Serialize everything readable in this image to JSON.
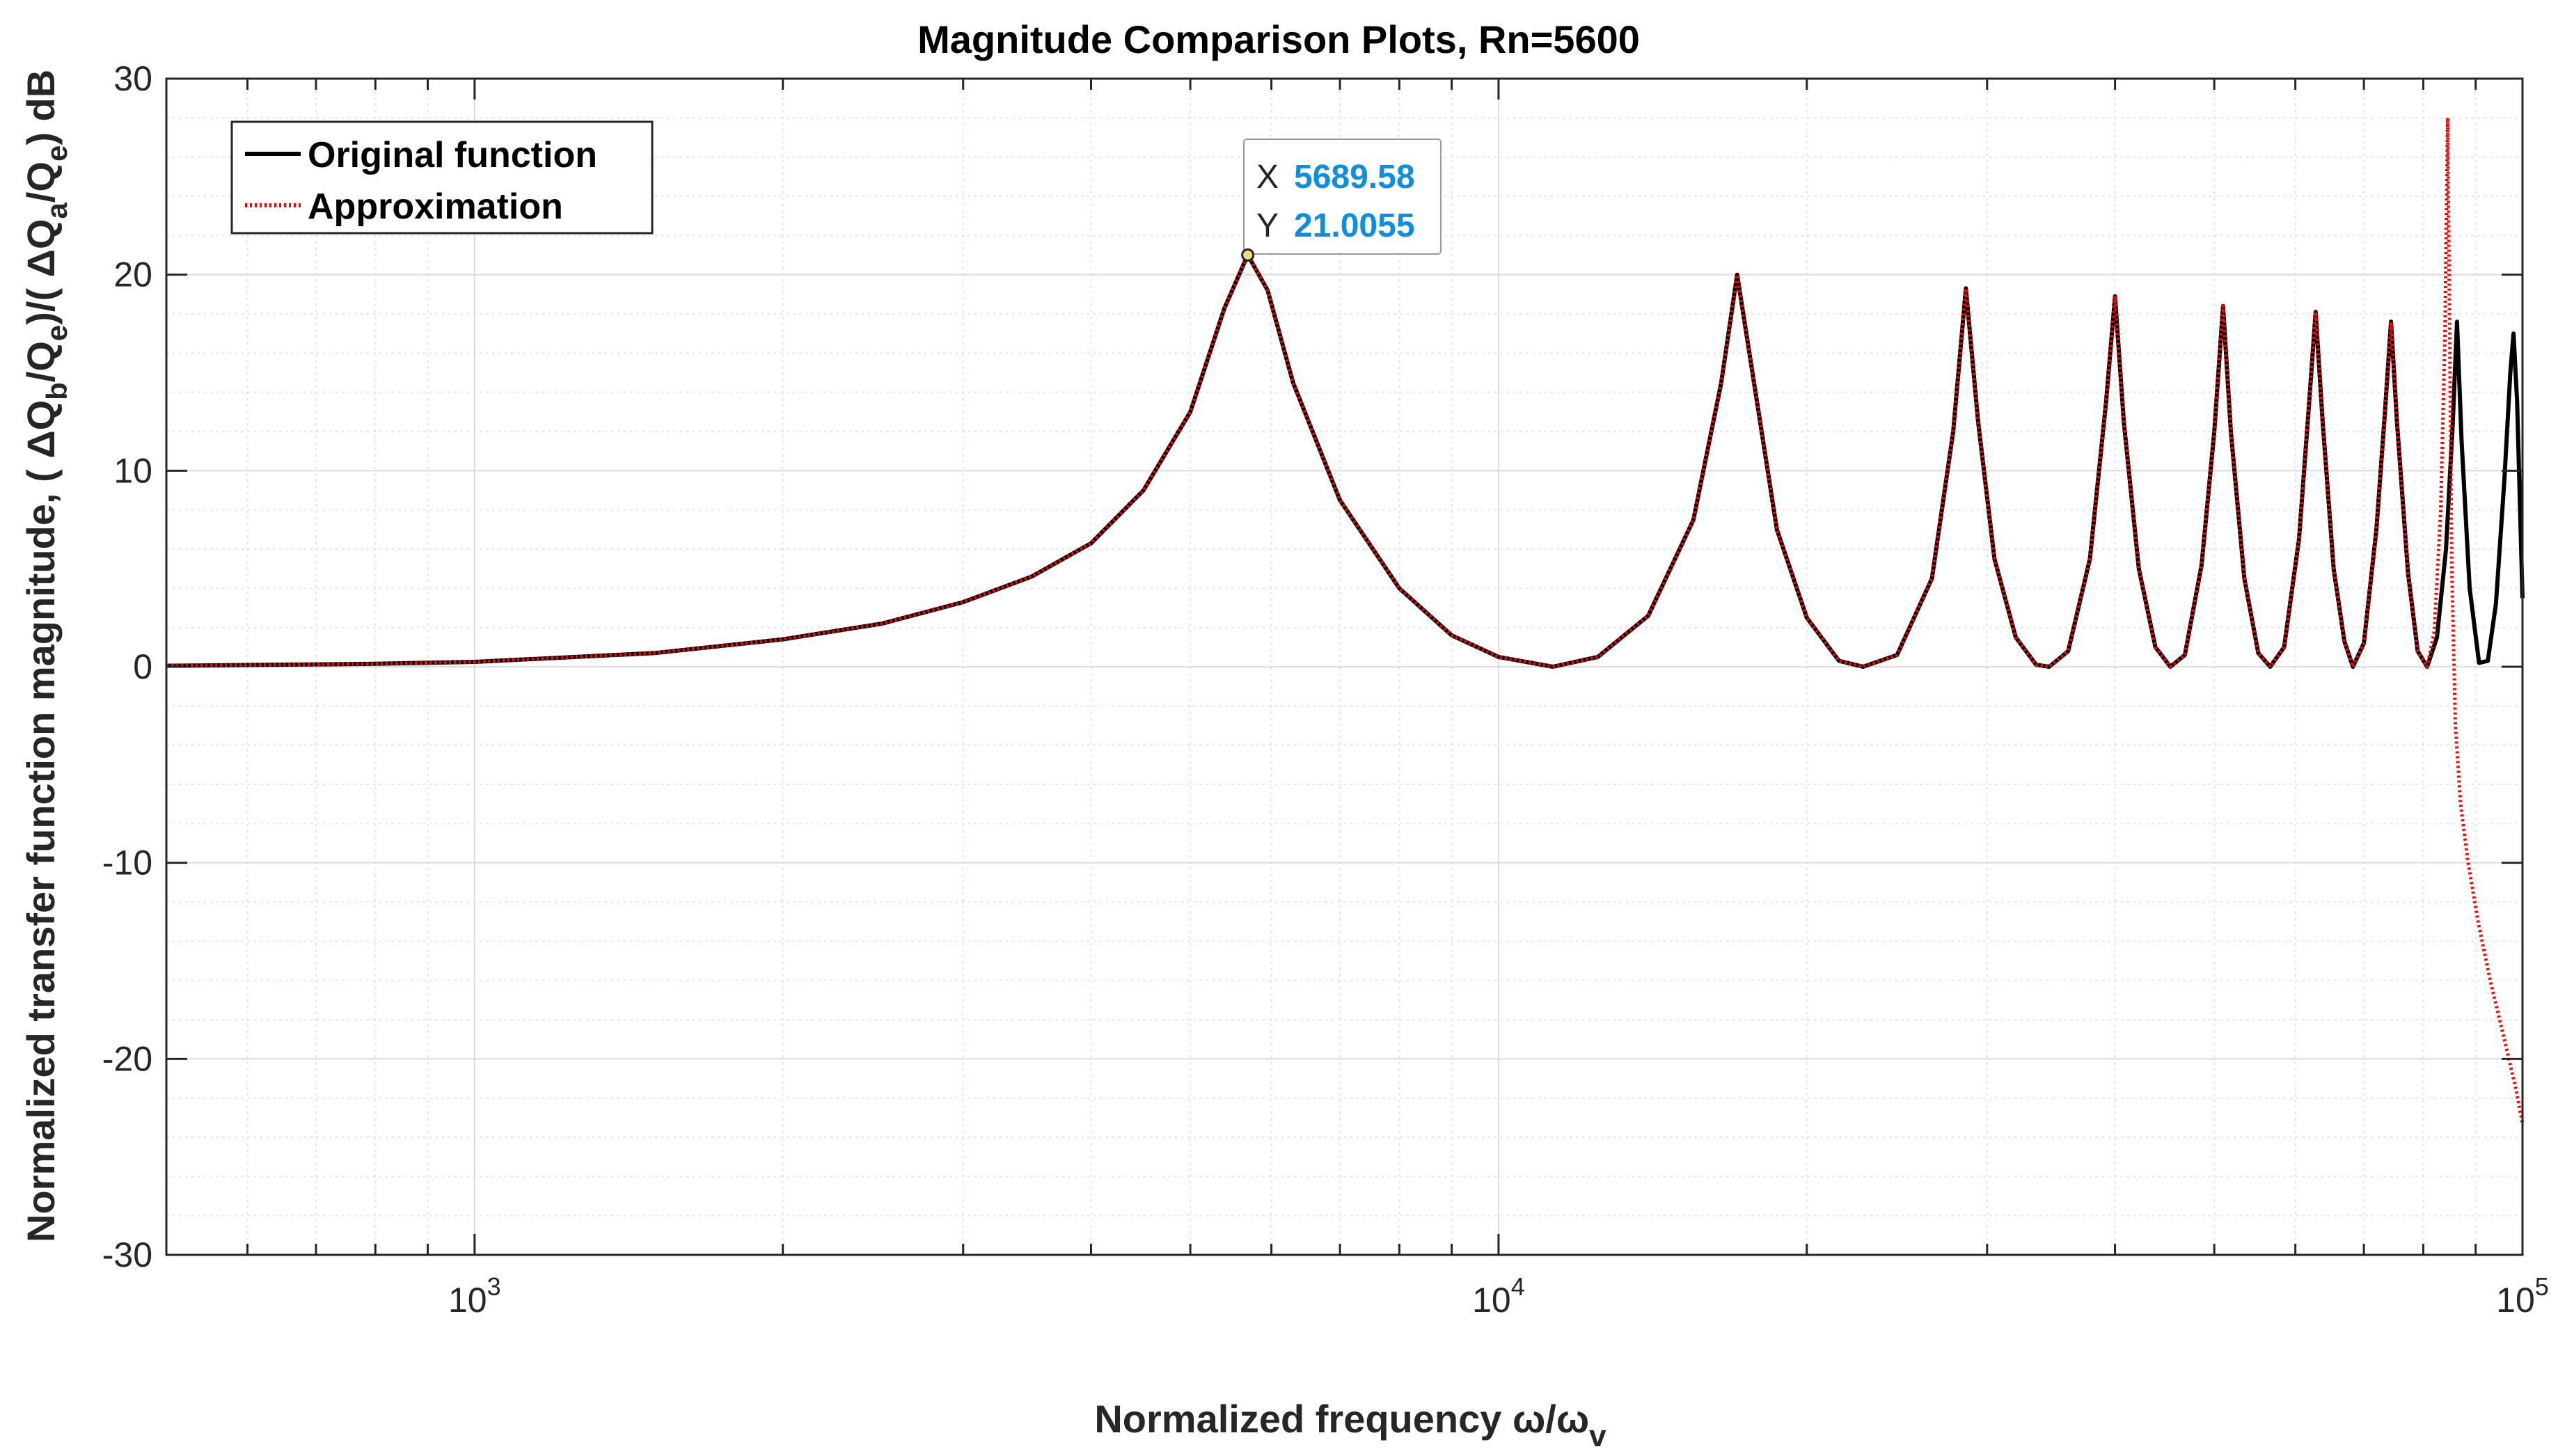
{
  "chart_data": {
    "type": "line",
    "title": "Magnitude Comparison Plots, Rn=5600",
    "xlabel": "Normalized frequency ω/ω",
    "xlabel_sub": "v",
    "ylabel_parts": [
      "Normalized transfer function magnitude,  ( ΔQ",
      "b",
      "/Q",
      "e",
      ")/( ΔQ",
      "a",
      "/Q",
      "e",
      ") dB"
    ],
    "xscale": "log",
    "xlim": [
      500,
      100000
    ],
    "ylim": [
      -30,
      30
    ],
    "yticks": [
      -30,
      -20,
      -10,
      0,
      10,
      20,
      30
    ],
    "ytick_labels": [
      "-30",
      "-20",
      "-10",
      "0",
      "10",
      "20",
      "30"
    ],
    "xticks": [
      {
        "value": 1000,
        "base": "10",
        "exp": "3"
      },
      {
        "value": 10000,
        "base": "10",
        "exp": "4"
      },
      {
        "value": 100000,
        "base": "10",
        "exp": "5"
      }
    ],
    "grid": true,
    "legend_position": "top-left",
    "series": [
      {
        "name": "Original function",
        "color": "#000000",
        "style": "solid",
        "points": [
          [
            500,
            0.05
          ],
          [
            800,
            0.15
          ],
          [
            1000,
            0.25
          ],
          [
            1500,
            0.7
          ],
          [
            2000,
            1.4
          ],
          [
            2500,
            2.2
          ],
          [
            3000,
            3.3
          ],
          [
            3500,
            4.6
          ],
          [
            4000,
            6.3
          ],
          [
            4500,
            9.0
          ],
          [
            5000,
            13.0
          ],
          [
            5400,
            18.3
          ],
          [
            5689.58,
            21.0055
          ],
          [
            5950,
            19.2
          ],
          [
            6300,
            14.5
          ],
          [
            7000,
            8.5
          ],
          [
            8000,
            4.0
          ],
          [
            9000,
            1.6
          ],
          [
            10000,
            0.5
          ],
          [
            11300,
            0.0
          ],
          [
            12500,
            0.5
          ],
          [
            14000,
            2.6
          ],
          [
            15500,
            7.5
          ],
          [
            16500,
            14.5
          ],
          [
            17100,
            20.0
          ],
          [
            17700,
            15.0
          ],
          [
            18700,
            7.0
          ],
          [
            20000,
            2.5
          ],
          [
            21500,
            0.3
          ],
          [
            22700,
            0.0
          ],
          [
            24500,
            0.6
          ],
          [
            26500,
            4.5
          ],
          [
            27800,
            12.0
          ],
          [
            28600,
            19.3
          ],
          [
            29400,
            12.5
          ],
          [
            30500,
            5.5
          ],
          [
            32000,
            1.5
          ],
          [
            33500,
            0.1
          ],
          [
            34500,
            0.0
          ],
          [
            36000,
            0.8
          ],
          [
            37800,
            5.5
          ],
          [
            39200,
            13.5
          ],
          [
            40000,
            18.9
          ],
          [
            40800,
            12.5
          ],
          [
            42200,
            5.0
          ],
          [
            43800,
            1.0
          ],
          [
            45300,
            0.0
          ],
          [
            46800,
            0.6
          ],
          [
            48600,
            5.2
          ],
          [
            50000,
            12.0
          ],
          [
            51000,
            18.4
          ],
          [
            51900,
            12.0
          ],
          [
            53500,
            4.5
          ],
          [
            55200,
            0.7
          ],
          [
            56700,
            0.0
          ],
          [
            58500,
            1.0
          ],
          [
            60500,
            6.5
          ],
          [
            61800,
            13.0
          ],
          [
            62800,
            18.1
          ],
          [
            63800,
            12.5
          ],
          [
            65400,
            5.0
          ],
          [
            67000,
            1.3
          ],
          [
            68300,
            0.0
          ],
          [
            70000,
            1.2
          ],
          [
            72000,
            7.0
          ],
          [
            73400,
            13.0
          ],
          [
            74400,
            17.6
          ],
          [
            75400,
            12.5
          ],
          [
            77300,
            4.8
          ],
          [
            79000,
            0.8
          ],
          [
            80700,
            0.0
          ],
          [
            82500,
            1.5
          ],
          [
            84200,
            6.0
          ],
          [
            85500,
            12.5
          ],
          [
            86300,
            17.6
          ],
          [
            87200,
            11.5
          ],
          [
            88800,
            4.0
          ],
          [
            90700,
            0.2
          ],
          [
            92500,
            0.3
          ],
          [
            94200,
            3.2
          ],
          [
            96000,
            9.5
          ],
          [
            97300,
            15.0
          ],
          [
            98000,
            17.0
          ],
          [
            98800,
            13.5
          ],
          [
            100000,
            3.5
          ]
        ]
      },
      {
        "name": "Approximation",
        "color": "#ff0000",
        "style": "dotted",
        "points": [
          [
            500,
            0.05
          ],
          [
            800,
            0.15
          ],
          [
            1000,
            0.25
          ],
          [
            1500,
            0.7
          ],
          [
            2000,
            1.4
          ],
          [
            2500,
            2.2
          ],
          [
            3000,
            3.3
          ],
          [
            3500,
            4.6
          ],
          [
            4000,
            6.3
          ],
          [
            4500,
            9.0
          ],
          [
            5000,
            13.0
          ],
          [
            5400,
            18.3
          ],
          [
            5689.58,
            21.0055
          ],
          [
            5950,
            19.2
          ],
          [
            6300,
            14.5
          ],
          [
            7000,
            8.5
          ],
          [
            8000,
            4.0
          ],
          [
            9000,
            1.6
          ],
          [
            10000,
            0.5
          ],
          [
            11300,
            0.0
          ],
          [
            12500,
            0.5
          ],
          [
            14000,
            2.6
          ],
          [
            15500,
            7.5
          ],
          [
            16500,
            14.5
          ],
          [
            17100,
            20.0
          ],
          [
            17700,
            15.0
          ],
          [
            18700,
            7.0
          ],
          [
            20000,
            2.5
          ],
          [
            21500,
            0.3
          ],
          [
            22700,
            0.0
          ],
          [
            24500,
            0.6
          ],
          [
            26500,
            4.5
          ],
          [
            27800,
            12.0
          ],
          [
            28600,
            19.3
          ],
          [
            29400,
            12.5
          ],
          [
            30500,
            5.5
          ],
          [
            32000,
            1.5
          ],
          [
            33500,
            0.1
          ],
          [
            34500,
            0.0
          ],
          [
            36000,
            0.8
          ],
          [
            37800,
            5.5
          ],
          [
            39200,
            13.5
          ],
          [
            40000,
            18.9
          ],
          [
            40800,
            12.5
          ],
          [
            42200,
            5.0
          ],
          [
            43800,
            1.0
          ],
          [
            45300,
            0.0
          ],
          [
            46800,
            0.6
          ],
          [
            48600,
            5.2
          ],
          [
            50000,
            12.0
          ],
          [
            51000,
            18.4
          ],
          [
            51900,
            12.0
          ],
          [
            53500,
            4.5
          ],
          [
            55200,
            0.7
          ],
          [
            56700,
            0.0
          ],
          [
            58500,
            1.0
          ],
          [
            60500,
            6.5
          ],
          [
            61800,
            13.0
          ],
          [
            62800,
            18.1
          ],
          [
            63800,
            12.5
          ],
          [
            65400,
            5.0
          ],
          [
            67000,
            1.3
          ],
          [
            68300,
            0.0
          ],
          [
            70000,
            1.2
          ],
          [
            72000,
            7.0
          ],
          [
            73400,
            13.0
          ],
          [
            74400,
            17.6
          ],
          [
            75400,
            12.5
          ],
          [
            77300,
            4.8
          ],
          [
            79000,
            0.8
          ],
          [
            80700,
            0.0
          ],
          [
            82000,
            1.8
          ],
          [
            83200,
            8.0
          ],
          [
            84000,
            17.0
          ],
          [
            84500,
            28.0
          ],
          [
            84900,
            17.0
          ],
          [
            85300,
            5.0
          ],
          [
            86000,
            -3.0
          ],
          [
            87000,
            -7.0
          ],
          [
            88500,
            -10.0
          ],
          [
            90500,
            -13.0
          ],
          [
            93000,
            -16.0
          ],
          [
            96000,
            -19.0
          ],
          [
            98500,
            -21.5
          ],
          [
            100000,
            -23.3
          ]
        ]
      }
    ],
    "datatip": {
      "x": 5689.58,
      "y": 21.0055,
      "x_label": "X",
      "y_label": "Y",
      "x_text": "5689.58",
      "y_text": "21.0055"
    }
  }
}
